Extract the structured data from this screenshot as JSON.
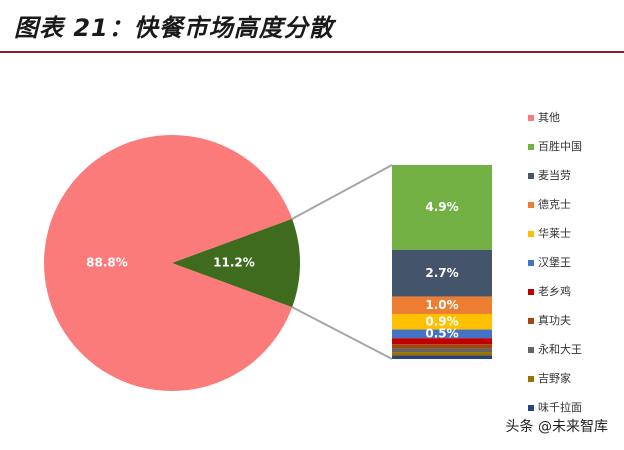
{
  "page": {
    "title": "图表 21：快餐市场高度分散",
    "watermark": "头条 @未来智库"
  },
  "chart_data": {
    "type": "bar-of-pie",
    "pie": {
      "slices": [
        {
          "name": "其他",
          "value": 88.8,
          "label": "88.8%",
          "color": "#fb7a7a"
        },
        {
          "name": "other-brands-combined",
          "value": 11.2,
          "label": "11.2%",
          "color": "#3f6b1f"
        }
      ]
    },
    "bar": {
      "total": 11.2,
      "segments": [
        {
          "name": "百胜中国",
          "value": 4.9,
          "label": "4.9%",
          "color": "#72b043"
        },
        {
          "name": "麦当劳",
          "value": 2.7,
          "label": "2.7%",
          "color": "#44546a"
        },
        {
          "name": "德克士",
          "value": 1.0,
          "label": "1.0%",
          "color": "#ed7d31"
        },
        {
          "name": "华莱士",
          "value": 0.9,
          "label": "0.9%",
          "color": "#ffc000"
        },
        {
          "name": "汉堡王",
          "value": 0.5,
          "label": "0.5%",
          "color": "#4472c4"
        },
        {
          "name": "老乡鸡",
          "value": 0.35,
          "label": "",
          "color": "#c00000"
        },
        {
          "name": "真功夫",
          "value": 0.25,
          "label": "",
          "color": "#9e480e"
        },
        {
          "name": "永和大王",
          "value": 0.2,
          "label": "",
          "color": "#636363"
        },
        {
          "name": "吉野家",
          "value": 0.2,
          "label": "",
          "color": "#997300"
        },
        {
          "name": "味千拉面",
          "value": 0.2,
          "label": "",
          "color": "#264478"
        }
      ]
    },
    "legend": {
      "position": "right",
      "items": [
        {
          "label": "其他",
          "color": "#fb7a7a"
        },
        {
          "label": "百胜中国",
          "color": "#72b043"
        },
        {
          "label": "麦当劳",
          "color": "#44546a"
        },
        {
          "label": "德克士",
          "color": "#ed7d31"
        },
        {
          "label": "华莱士",
          "color": "#ffc000"
        },
        {
          "label": "汉堡王",
          "color": "#4472c4"
        },
        {
          "label": "老乡鸡",
          "color": "#c00000"
        },
        {
          "label": "真功夫",
          "color": "#9e480e"
        },
        {
          "label": "永和大王",
          "color": "#636363"
        },
        {
          "label": "吉野家",
          "color": "#997300"
        },
        {
          "label": "味千拉面",
          "color": "#264478"
        }
      ]
    }
  }
}
